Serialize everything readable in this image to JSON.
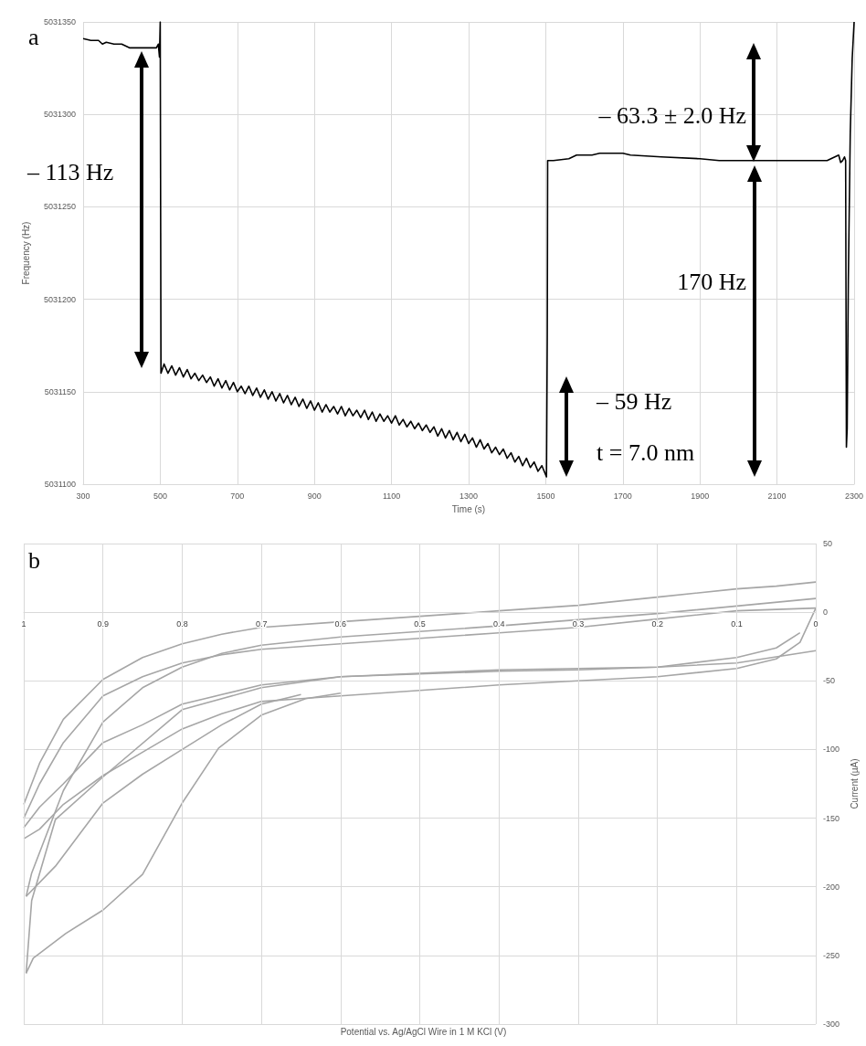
{
  "chart_data": [
    {
      "type": "line",
      "xlabel": "Time (s)",
      "ylabel": "Frequency (Hz)",
      "xlim": [
        300,
        2300
      ],
      "xticks": [
        300,
        500,
        700,
        900,
        1100,
        1300,
        1500,
        1700,
        1900,
        2100,
        2300
      ],
      "ylim": [
        5031100,
        5031350
      ],
      "yticks": [
        5031100,
        5031150,
        5031200,
        5031250,
        5031300,
        5031350
      ],
      "grid": true,
      "annotations": [
        "a",
        "– 113 Hz",
        "– 63.3 ± 2.0 Hz",
        "170 Hz",
        "– 59 Hz",
        "t = 7.0 nm"
      ],
      "series": [
        {
          "color": "#000000",
          "x": [
            300,
            320,
            340,
            350,
            360,
            380,
            400,
            410,
            420,
            440,
            460,
            480,
            490,
            495,
            498,
            500,
            502,
            510,
            520,
            530,
            540,
            550,
            560,
            570,
            580,
            590,
            600,
            610,
            620,
            630,
            640,
            650,
            660,
            670,
            680,
            690,
            700,
            710,
            720,
            730,
            740,
            750,
            760,
            770,
            780,
            790,
            800,
            810,
            820,
            830,
            840,
            850,
            860,
            870,
            880,
            890,
            900,
            910,
            920,
            930,
            940,
            950,
            960,
            970,
            980,
            990,
            1000,
            1010,
            1020,
            1030,
            1040,
            1050,
            1060,
            1070,
            1080,
            1090,
            1100,
            1110,
            1120,
            1130,
            1140,
            1150,
            1160,
            1170,
            1180,
            1190,
            1200,
            1210,
            1220,
            1230,
            1240,
            1250,
            1260,
            1270,
            1280,
            1290,
            1300,
            1310,
            1320,
            1330,
            1340,
            1350,
            1360,
            1370,
            1380,
            1390,
            1400,
            1410,
            1420,
            1430,
            1440,
            1450,
            1460,
            1470,
            1480,
            1490,
            1500,
            1502,
            1504,
            1505,
            1520,
            1560,
            1580,
            1620,
            1640,
            1700,
            1720,
            1800,
            1900,
            1950,
            2000,
            2100,
            2150,
            2230,
            2260,
            2265,
            2270,
            2275,
            2278,
            2280,
            2282,
            2285,
            2290,
            2295,
            2300
          ],
          "values": [
            5031341,
            5031340,
            5031340,
            5031338,
            5031339,
            5031338,
            5031338,
            5031337,
            5031336,
            5031336,
            5031336,
            5031336,
            5031336,
            5031338,
            5031331,
            5031350,
            5031160,
            5031165,
            5031160,
            5031164,
            5031159,
            5031163,
            5031158,
            5031162,
            5031157,
            5031160,
            5031156,
            5031159,
            5031155,
            5031158,
            5031153,
            5031157,
            5031152,
            5031156,
            5031151,
            5031155,
            5031150,
            5031153,
            5031149,
            5031153,
            5031148,
            5031152,
            5031147,
            5031151,
            5031146,
            5031150,
            5031145,
            5031149,
            5031144,
            5031148,
            5031143,
            5031147,
            5031142,
            5031146,
            5031141,
            5031145,
            5031140,
            5031144,
            5031139,
            5031143,
            5031139,
            5031142,
            5031138,
            5031142,
            5031137,
            5031141,
            5031137,
            5031140,
            5031136,
            5031140,
            5031135,
            5031139,
            5031134,
            5031138,
            5031134,
            5031137,
            5031133,
            5031137,
            5031132,
            5031135,
            5031131,
            5031134,
            5031130,
            5031133,
            5031129,
            5031132,
            5031128,
            5031131,
            5031126,
            5031130,
            5031125,
            5031129,
            5031124,
            5031128,
            5031123,
            5031127,
            5031122,
            5031125,
            5031120,
            5031124,
            5031119,
            5031122,
            5031117,
            5031120,
            5031116,
            5031119,
            5031114,
            5031117,
            5031112,
            5031115,
            5031110,
            5031114,
            5031109,
            5031112,
            5031107,
            5031110,
            5031105,
            5031104,
            5031180,
            5031275,
            5031275,
            5031276,
            5031278,
            5031278,
            5031279,
            5031279,
            5031278,
            5031277,
            5031276,
            5031275,
            5031275,
            5031275,
            5031275,
            5031275,
            5031278,
            5031274,
            5031275,
            5031277,
            5031275,
            5031120,
            5031130,
            5031210,
            5031290,
            5031330,
            5031350
          ]
        }
      ]
    },
    {
      "type": "line",
      "xlabel": "Potential vs. Ag/AgCl Wire in 1 M KCl (V)",
      "ylabel": "Current (µA)",
      "xlim": [
        1,
        0
      ],
      "xticks": [
        1,
        0.9,
        0.8,
        0.7,
        0.6,
        0.5,
        0.4,
        0.3,
        0.2,
        0.1,
        0
      ],
      "ylim": [
        -300,
        50
      ],
      "yticks": [
        -300,
        -250,
        -200,
        -150,
        -100,
        -50,
        0,
        50
      ],
      "grid": true,
      "annotations": [
        "b"
      ],
      "series": [
        {
          "color": "#a6a6a6",
          "x": [
            0,
            0.05,
            0.1,
            0.2,
            0.3,
            0.4,
            0.5,
            0.6,
            0.7,
            0.75,
            0.8,
            0.85,
            0.9,
            0.95,
            0.98,
            1
          ],
          "values": [
            22,
            19,
            17,
            11,
            5,
            1,
            -3,
            -7,
            -11,
            -16,
            -23,
            -33,
            -49,
            -78,
            -110,
            -140
          ]
        },
        {
          "color": "#a6a6a6",
          "x": [
            1,
            0.98,
            0.95,
            0.9,
            0.85,
            0.8,
            0.75,
            0.7,
            0.65,
            0.6,
            0.5,
            0.4,
            0.3,
            0.2,
            0.1,
            0.05,
            0.02,
            0
          ],
          "values": [
            -165,
            -158,
            -140,
            -119,
            -102,
            -85,
            -74,
            -65,
            -63,
            -61,
            -57,
            -53,
            -50,
            -47,
            -41,
            -34,
            -22,
            3
          ]
        },
        {
          "color": "#a6a6a6",
          "x": [
            0,
            0.1,
            0.2,
            0.3,
            0.4,
            0.5,
            0.6,
            0.7,
            0.75,
            0.8,
            0.85,
            0.9,
            0.95,
            0.98,
            1
          ],
          "values": [
            3,
            1,
            -5,
            -11,
            -15,
            -19,
            -23,
            -27,
            -31,
            -37,
            -47,
            -61,
            -95,
            -125,
            -150
          ]
        },
        {
          "color": "#a6a6a6",
          "x": [
            1,
            0.98,
            0.95,
            0.9,
            0.85,
            0.8,
            0.75,
            0.7,
            0.6,
            0.5,
            0.4,
            0.3,
            0.2,
            0.1,
            0.05,
            0.02
          ],
          "values": [
            -157,
            -142,
            -125,
            -95,
            -82,
            -67,
            -60,
            -53,
            -47,
            -45,
            -43,
            -42,
            -40,
            -33,
            -26,
            -15
          ]
        },
        {
          "color": "#a6a6a6",
          "x": [
            0,
            0.2,
            0.4,
            0.6,
            0.7,
            0.75,
            0.8,
            0.85,
            0.9,
            0.95,
            0.99,
            0.997
          ],
          "values": [
            10,
            -1,
            -10,
            -18,
            -24,
            -30,
            -40,
            -55,
            -80,
            -130,
            -190,
            -207
          ]
        },
        {
          "color": "#a6a6a6",
          "x": [
            0.997,
            0.96,
            0.9,
            0.85,
            0.8,
            0.75,
            0.7,
            0.65
          ],
          "values": [
            -207,
            -185,
            -139,
            -118,
            -100,
            -82,
            -67,
            -60
          ]
        },
        {
          "color": "#a6a6a6",
          "x": [
            0,
            0.1,
            0.2,
            0.4,
            0.6,
            0.7,
            0.8,
            0.9,
            0.96,
            0.99,
            0.997
          ],
          "values": [
            -28,
            -37,
            -40,
            -42,
            -47,
            -55,
            -71,
            -120,
            -151,
            -210,
            -263
          ]
        },
        {
          "color": "#a6a6a6",
          "x": [
            0.997,
            0.988,
            0.947,
            0.9,
            0.85,
            0.8,
            0.754,
            0.7,
            0.644,
            0.6
          ],
          "values": [
            -263,
            -252,
            -234,
            -217,
            -191,
            -139,
            -99,
            -75,
            -63,
            -59
          ]
        }
      ]
    }
  ]
}
